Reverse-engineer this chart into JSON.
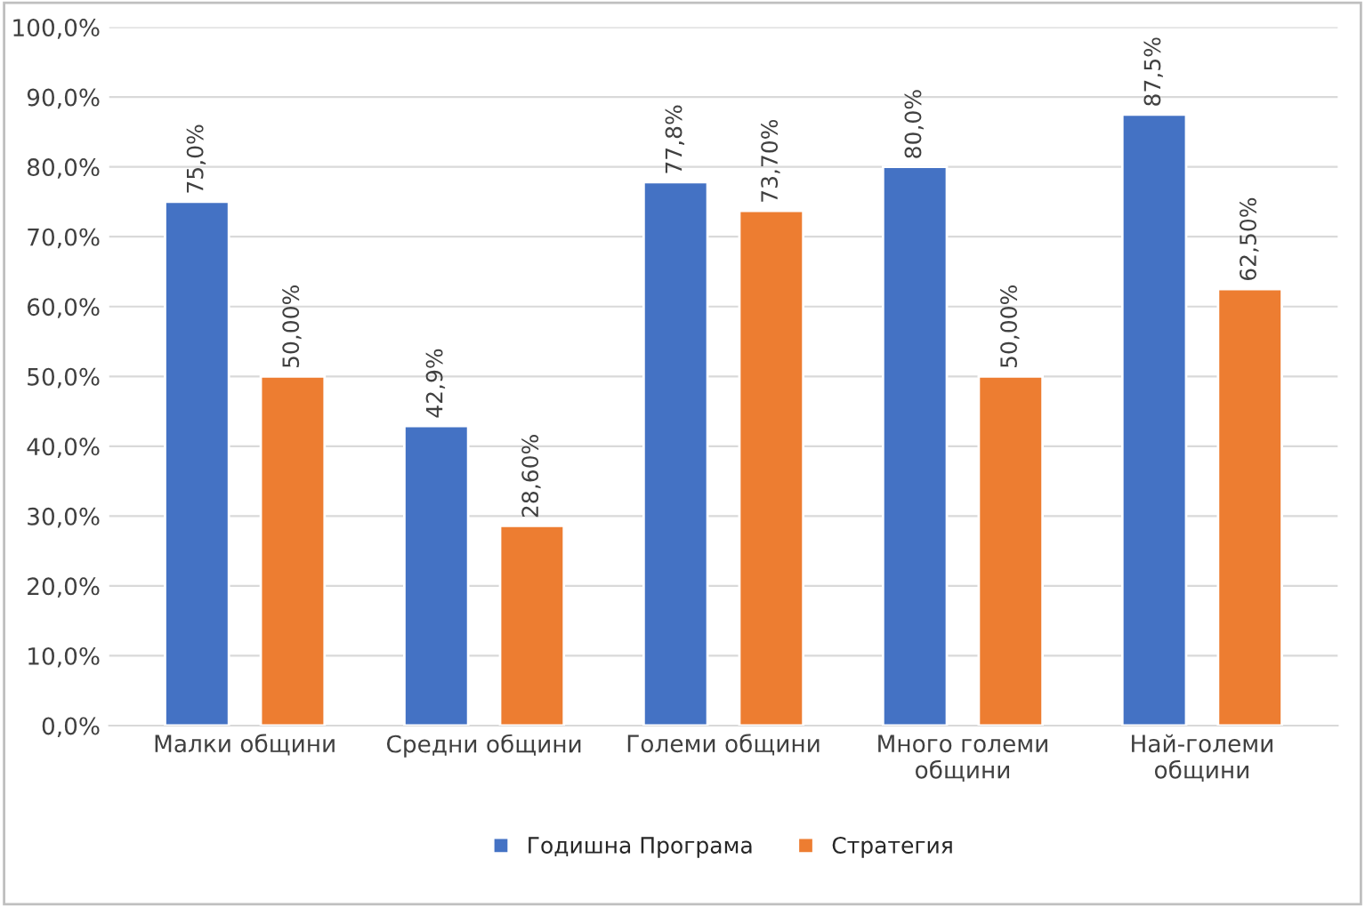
{
  "chart_data": {
    "type": "bar",
    "categories": [
      "Малки общини",
      "Средни общини",
      "Големи общини",
      "Много големи\nобщини",
      "Най-големи\nобщини"
    ],
    "series": [
      {
        "name": "Годишна Програма",
        "color": "#4472c4",
        "values": [
          75.0,
          42.9,
          77.8,
          80.0,
          87.5
        ],
        "value_labels": [
          "75,0%",
          "42,9%",
          "77,8%",
          "80,0%",
          "87,5%"
        ]
      },
      {
        "name": "Стратегия",
        "color": "#ed7d31",
        "values": [
          50.0,
          28.6,
          73.7,
          50.0,
          62.5
        ],
        "value_labels": [
          "50,00%",
          "28,60%",
          "73,70%",
          "50,00%",
          "62,50%"
        ]
      }
    ],
    "ylim": [
      0,
      100
    ],
    "yticks": [
      {
        "value": 0,
        "label": "0,0%"
      },
      {
        "value": 10,
        "label": "10,0%"
      },
      {
        "value": 20,
        "label": "20,0%"
      },
      {
        "value": 30,
        "label": "30,0%"
      },
      {
        "value": 40,
        "label": "40,0%"
      },
      {
        "value": 50,
        "label": "50,0%"
      },
      {
        "value": 60,
        "label": "60,0%"
      },
      {
        "value": 70,
        "label": "70,0%"
      },
      {
        "value": 80,
        "label": "80,0%"
      },
      {
        "value": 90,
        "label": "90,0%"
      },
      {
        "value": 100,
        "label": "100,0%"
      }
    ],
    "grid": "y",
    "legend": "bottom"
  }
}
